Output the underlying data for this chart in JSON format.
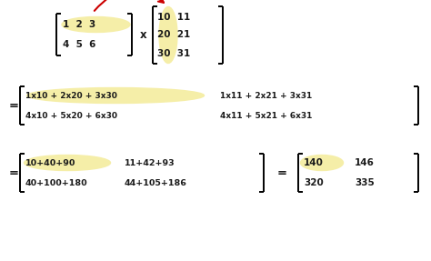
{
  "bg_color": "#ffffff",
  "highlight_color": "#f5eea8",
  "text_color": "#1a1a1a",
  "arrow_color": "#cc0000",
  "figsize": [
    4.74,
    2.87
  ],
  "dpi": 100,
  "matrix1_r1": "1  2  3",
  "matrix1_r2": "4  5  6",
  "matrix2_r1": "10  11",
  "matrix2_r2": "20  21",
  "matrix2_r3": "30  31",
  "times": "x",
  "eq1_r1c1": "1x10 + 2x20 + 3x30",
  "eq1_r1c2": "1x11 + 2x21 + 3x31",
  "eq1_r2c1": "4x10 + 5x20 + 6x30",
  "eq1_r2c2": "4x11 + 5x21 + 6x31",
  "eq2_r1c1": "10+40+90",
  "eq2_r1c2": "11+42+93",
  "eq2_r2c1": "40+100+180",
  "eq2_r2c2": "44+105+186",
  "res_r1c1": "140",
  "res_r1c2": "146",
  "res_r2c1": "320",
  "res_r2c2": "335",
  "xlim": [
    0,
    4.74
  ],
  "ylim": [
    0,
    2.87
  ]
}
